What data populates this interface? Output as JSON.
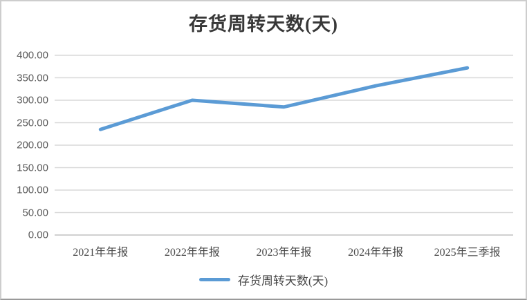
{
  "chart_data": {
    "type": "line",
    "title": "存货周转天数(天)",
    "categories": [
      "2021年年报",
      "2022年年报",
      "2023年年报",
      "2024年年报",
      "2025年三季报"
    ],
    "series": [
      {
        "name": "存货周转天数(天)",
        "values": [
          235,
          300,
          285,
          332,
          372
        ],
        "color": "#5B9BD5"
      }
    ],
    "xlabel": "",
    "ylabel": "",
    "ylim": [
      0,
      400
    ],
    "y_tick_step": 50,
    "y_tick_labels": [
      "400.00",
      "350.00",
      "300.00",
      "250.00",
      "200.00",
      "150.00",
      "100.00",
      "50.00",
      "0.00"
    ],
    "grid": true,
    "legend_position": "bottom"
  },
  "colors": {
    "line": "#5B9BD5",
    "gridline": "#D9D9D9",
    "axis_line": "#C0C0C0",
    "title_text": "#383838",
    "axis_text": "#595959"
  }
}
